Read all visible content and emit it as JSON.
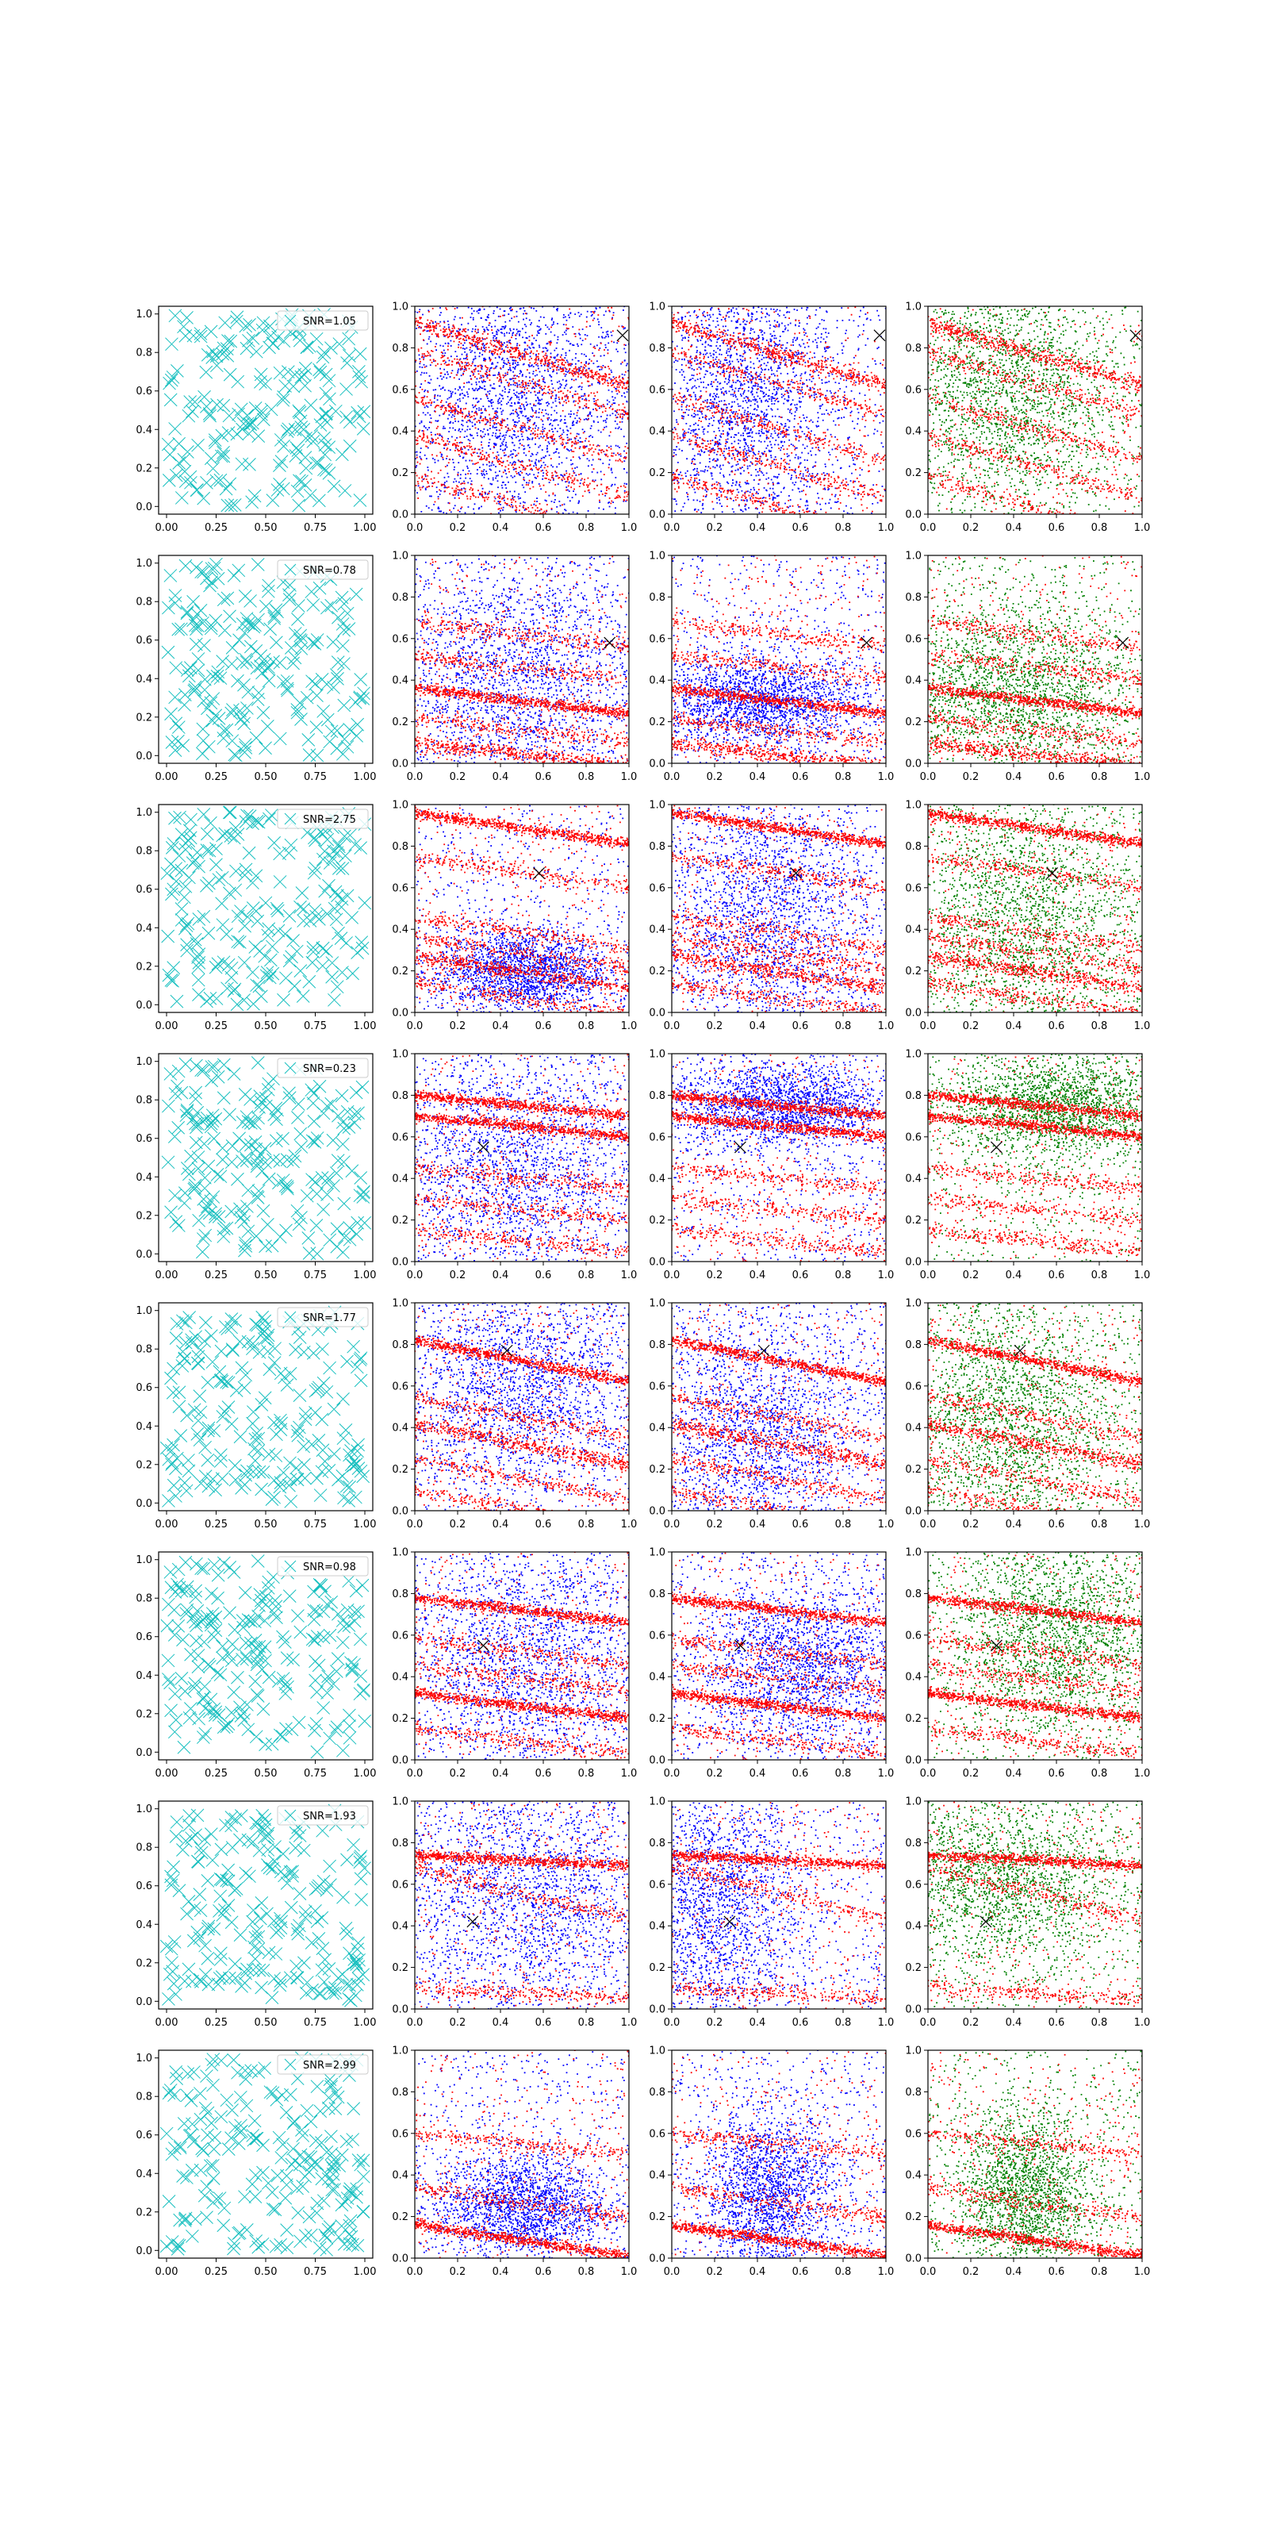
{
  "figure": {
    "rows": 8,
    "cols": 4,
    "scatter_colors": {
      "cyan": "#17bfbf",
      "blue": "#0000ff",
      "red": "#ff0000",
      "green": "#008000",
      "marker": "#000000"
    }
  },
  "chart_data": [
    {
      "type": "scatter",
      "row_index": 0,
      "legend": "SNR=1.05",
      "x_ticks": [
        "0.00",
        "0.25",
        "0.50",
        "0.75",
        "1.00"
      ],
      "y_ticks": [
        "0.0",
        "0.2",
        "0.4",
        "0.6",
        "0.8",
        "1.0"
      ],
      "band_x_ticks": [
        "0.0",
        "0.2",
        "0.4",
        "0.6",
        "0.8",
        "1.0"
      ],
      "band_y_ticks": [
        "0.0",
        "0.2",
        "0.4",
        "0.6",
        "0.8",
        "1.0"
      ],
      "xlim": [
        -0.04,
        1.04
      ],
      "ylim": [
        -0.04,
        1.04
      ],
      "band_xlim": [
        0,
        1
      ],
      "band_ylim": [
        0,
        1
      ],
      "marker_point": [
        0.97,
        0.86
      ],
      "bands": [
        {
          "y0": 0.92,
          "slope": -0.3,
          "weight": 2
        },
        {
          "y0": 0.78,
          "slope": -0.3,
          "weight": 1
        },
        {
          "y0": 0.56,
          "slope": -0.3,
          "weight": 1
        },
        {
          "y0": 0.38,
          "slope": -0.3,
          "weight": 1
        },
        {
          "y0": 0.18,
          "slope": -0.3,
          "weight": 1
        }
      ],
      "cloud_blue_col2": {
        "x": 0.45,
        "y": 0.55,
        "sx": 0.28,
        "sy": 0.32
      },
      "cloud_blue_col3": {
        "x": 0.35,
        "y": 0.55,
        "sx": 0.22,
        "sy": 0.32
      },
      "cloud_green": {
        "x": 0.35,
        "y": 0.6,
        "sx": 0.25,
        "sy": 0.3
      }
    },
    {
      "type": "scatter",
      "row_index": 1,
      "legend": "SNR=0.78",
      "x_ticks": [
        "0.00",
        "0.25",
        "0.50",
        "0.75",
        "1.00"
      ],
      "y_ticks": [
        "0.0",
        "0.2",
        "0.4",
        "0.6",
        "0.8",
        "1.0"
      ],
      "band_x_ticks": [
        "0.0",
        "0.2",
        "0.4",
        "0.6",
        "0.8",
        "1.0"
      ],
      "band_y_ticks": [
        "0.0",
        "0.2",
        "0.4",
        "0.6",
        "0.8",
        "1.0"
      ],
      "xlim": [
        -0.04,
        1.04
      ],
      "ylim": [
        -0.04,
        1.04
      ],
      "band_xlim": [
        0,
        1
      ],
      "band_ylim": [
        0,
        1
      ],
      "marker_point": [
        0.91,
        0.58
      ],
      "bands": [
        {
          "y0": 0.36,
          "slope": -0.12,
          "weight": 3
        },
        {
          "y0": 0.68,
          "slope": -0.12,
          "weight": 1
        },
        {
          "y0": 0.52,
          "slope": -0.12,
          "weight": 1
        },
        {
          "y0": 0.22,
          "slope": -0.12,
          "weight": 1
        },
        {
          "y0": 0.1,
          "slope": -0.12,
          "weight": 2
        }
      ],
      "cloud_blue_col2": {
        "x": 0.45,
        "y": 0.4,
        "sx": 0.3,
        "sy": 0.3
      },
      "cloud_blue_col3": {
        "x": 0.4,
        "y": 0.3,
        "sx": 0.25,
        "sy": 0.1
      },
      "cloud_green": {
        "x": 0.4,
        "y": 0.35,
        "sx": 0.28,
        "sy": 0.2
      }
    },
    {
      "type": "scatter",
      "row_index": 2,
      "legend": "SNR=2.75",
      "x_ticks": [
        "0.00",
        "0.25",
        "0.50",
        "0.75",
        "1.00"
      ],
      "y_ticks": [
        "0.0",
        "0.2",
        "0.4",
        "0.6",
        "0.8",
        "1.0"
      ],
      "band_x_ticks": [
        "0.0",
        "0.2",
        "0.4",
        "0.6",
        "0.8",
        "1.0"
      ],
      "band_y_ticks": [
        "0.0",
        "0.2",
        "0.4",
        "0.6",
        "0.8",
        "1.0"
      ],
      "xlim": [
        -0.04,
        1.04
      ],
      "ylim": [
        -0.04,
        1.04
      ],
      "band_xlim": [
        0,
        1
      ],
      "band_ylim": [
        0,
        1
      ],
      "marker_point": [
        0.58,
        0.67
      ],
      "bands": [
        {
          "y0": 0.96,
          "slope": -0.15,
          "weight": 3
        },
        {
          "y0": 0.75,
          "slope": -0.15,
          "weight": 1
        },
        {
          "y0": 0.46,
          "slope": -0.15,
          "weight": 1
        },
        {
          "y0": 0.36,
          "slope": -0.15,
          "weight": 1
        },
        {
          "y0": 0.27,
          "slope": -0.15,
          "weight": 2
        },
        {
          "y0": 0.14,
          "slope": -0.15,
          "weight": 1
        }
      ],
      "cloud_blue_col2": {
        "x": 0.5,
        "y": 0.2,
        "sx": 0.2,
        "sy": 0.1
      },
      "cloud_blue_col3": {
        "x": 0.45,
        "y": 0.5,
        "sx": 0.25,
        "sy": 0.3
      },
      "cloud_green": {
        "x": 0.45,
        "y": 0.45,
        "sx": 0.28,
        "sy": 0.3
      }
    },
    {
      "type": "scatter",
      "row_index": 3,
      "legend": "SNR=0.23",
      "x_ticks": [
        "0.00",
        "0.25",
        "0.50",
        "0.75",
        "1.00"
      ],
      "y_ticks": [
        "0.0",
        "0.2",
        "0.4",
        "0.6",
        "0.8",
        "1.0"
      ],
      "band_x_ticks": [
        "0.0",
        "0.2",
        "0.4",
        "0.6",
        "0.8",
        "1.0"
      ],
      "band_y_ticks": [
        "0.0",
        "0.2",
        "0.4",
        "0.6",
        "0.8",
        "1.0"
      ],
      "xlim": [
        -0.04,
        1.04
      ],
      "ylim": [
        -0.04,
        1.04
      ],
      "band_xlim": [
        0,
        1
      ],
      "band_ylim": [
        0,
        1
      ],
      "marker_point": [
        0.32,
        0.55
      ],
      "bands": [
        {
          "y0": 0.8,
          "slope": -0.1,
          "weight": 3
        },
        {
          "y0": 0.7,
          "slope": -0.1,
          "weight": 3
        },
        {
          "y0": 0.45,
          "slope": -0.1,
          "weight": 1
        },
        {
          "y0": 0.3,
          "slope": -0.1,
          "weight": 1
        },
        {
          "y0": 0.15,
          "slope": -0.1,
          "weight": 1
        }
      ],
      "cloud_blue_col2": {
        "x": 0.45,
        "y": 0.45,
        "sx": 0.3,
        "sy": 0.3
      },
      "cloud_blue_col3": {
        "x": 0.5,
        "y": 0.75,
        "sx": 0.25,
        "sy": 0.1
      },
      "cloud_green": {
        "x": 0.6,
        "y": 0.75,
        "sx": 0.25,
        "sy": 0.12
      }
    },
    {
      "type": "scatter",
      "row_index": 4,
      "legend": "SNR=1.77",
      "x_ticks": [
        "0.00",
        "0.25",
        "0.50",
        "0.75",
        "1.00"
      ],
      "y_ticks": [
        "0.0",
        "0.2",
        "0.4",
        "0.6",
        "0.8",
        "1.0"
      ],
      "band_x_ticks": [
        "0.0",
        "0.2",
        "0.4",
        "0.6",
        "0.8",
        "1.0"
      ],
      "band_y_ticks": [
        "0.0",
        "0.2",
        "0.4",
        "0.6",
        "0.8",
        "1.0"
      ],
      "xlim": [
        -0.04,
        1.04
      ],
      "ylim": [
        -0.04,
        1.04
      ],
      "band_xlim": [
        0,
        1
      ],
      "band_ylim": [
        0,
        1
      ],
      "marker_point": [
        0.43,
        0.77
      ],
      "bands": [
        {
          "y0": 0.82,
          "slope": -0.2,
          "weight": 3
        },
        {
          "y0": 0.55,
          "slope": -0.2,
          "weight": 1
        },
        {
          "y0": 0.42,
          "slope": -0.2,
          "weight": 2
        },
        {
          "y0": 0.25,
          "slope": -0.2,
          "weight": 1
        },
        {
          "y0": 0.1,
          "slope": -0.2,
          "weight": 1
        }
      ],
      "cloud_blue_col2": {
        "x": 0.5,
        "y": 0.6,
        "sx": 0.3,
        "sy": 0.25
      },
      "cloud_blue_col3": {
        "x": 0.4,
        "y": 0.35,
        "sx": 0.25,
        "sy": 0.3
      },
      "cloud_green": {
        "x": 0.35,
        "y": 0.45,
        "sx": 0.25,
        "sy": 0.3
      }
    },
    {
      "type": "scatter",
      "row_index": 5,
      "legend": "SNR=0.98",
      "x_ticks": [
        "0.00",
        "0.25",
        "0.50",
        "0.75",
        "1.00"
      ],
      "y_ticks": [
        "0.0",
        "0.2",
        "0.4",
        "0.6",
        "0.8",
        "1.0"
      ],
      "band_x_ticks": [
        "0.0",
        "0.2",
        "0.4",
        "0.6",
        "0.8",
        "1.0"
      ],
      "band_y_ticks": [
        "0.0",
        "0.2",
        "0.4",
        "0.6",
        "0.8",
        "1.0"
      ],
      "xlim": [
        -0.04,
        1.04
      ],
      "ylim": [
        -0.04,
        1.04
      ],
      "band_xlim": [
        0,
        1
      ],
      "band_ylim": [
        0,
        1
      ],
      "marker_point": [
        0.32,
        0.55
      ],
      "bands": [
        {
          "y0": 0.78,
          "slope": -0.12,
          "weight": 3
        },
        {
          "y0": 0.58,
          "slope": -0.12,
          "weight": 1
        },
        {
          "y0": 0.45,
          "slope": -0.12,
          "weight": 1
        },
        {
          "y0": 0.32,
          "slope": -0.12,
          "weight": 3
        },
        {
          "y0": 0.15,
          "slope": -0.12,
          "weight": 1
        }
      ],
      "cloud_blue_col2": {
        "x": 0.5,
        "y": 0.5,
        "sx": 0.3,
        "sy": 0.3
      },
      "cloud_blue_col3": {
        "x": 0.6,
        "y": 0.45,
        "sx": 0.25,
        "sy": 0.2
      },
      "cloud_green": {
        "x": 0.6,
        "y": 0.6,
        "sx": 0.25,
        "sy": 0.25
      }
    },
    {
      "type": "scatter",
      "row_index": 6,
      "legend": "SNR=1.93",
      "x_ticks": [
        "0.00",
        "0.25",
        "0.50",
        "0.75",
        "1.00"
      ],
      "y_ticks": [
        "0.0",
        "0.2",
        "0.4",
        "0.6",
        "0.8",
        "1.0"
      ],
      "band_x_ticks": [
        "0.0",
        "0.2",
        "0.4",
        "0.6",
        "0.8",
        "1.0"
      ],
      "band_y_ticks": [
        "0.0",
        "0.2",
        "0.4",
        "0.6",
        "0.8",
        "1.0"
      ],
      "xlim": [
        -0.04,
        1.04
      ],
      "ylim": [
        -0.04,
        1.04
      ],
      "band_xlim": [
        0,
        1
      ],
      "band_ylim": [
        0,
        1
      ],
      "marker_point": [
        0.27,
        0.42
      ],
      "bands": [
        {
          "y0": 0.74,
          "slope": -0.05,
          "weight": 3
        },
        {
          "y0": 0.68,
          "slope": -0.25,
          "weight": 1
        },
        {
          "y0": 0.1,
          "slope": -0.05,
          "weight": 1
        }
      ],
      "cloud_blue_col2": {
        "x": 0.5,
        "y": 0.55,
        "sx": 0.3,
        "sy": 0.3
      },
      "cloud_blue_col3": {
        "x": 0.2,
        "y": 0.5,
        "sx": 0.2,
        "sy": 0.3
      },
      "cloud_green": {
        "x": 0.3,
        "y": 0.6,
        "sx": 0.3,
        "sy": 0.2
      }
    },
    {
      "type": "scatter",
      "row_index": 7,
      "legend": "SNR=2.99",
      "x_ticks": [
        "0.00",
        "0.25",
        "0.50",
        "0.75",
        "1.00"
      ],
      "y_ticks": [
        "0.0",
        "0.2",
        "0.4",
        "0.6",
        "0.8",
        "1.0"
      ],
      "band_x_ticks": [
        "0.0",
        "0.2",
        "0.4",
        "0.6",
        "0.8",
        "1.0"
      ],
      "band_y_ticks": [
        "0.0",
        "0.2",
        "0.4",
        "0.6",
        "0.8",
        "1.0"
      ],
      "xlim": [
        -0.04,
        1.04
      ],
      "ylim": [
        -0.04,
        1.04
      ],
      "band_xlim": [
        0,
        1
      ],
      "band_ylim": [
        0,
        1
      ],
      "marker_point": null,
      "bands": [
        {
          "y0": 0.16,
          "slope": -0.15,
          "weight": 3
        },
        {
          "y0": 0.34,
          "slope": -0.15,
          "weight": 1
        },
        {
          "y0": 0.6,
          "slope": -0.1,
          "weight": 1
        }
      ],
      "cloud_blue_col2": {
        "x": 0.5,
        "y": 0.25,
        "sx": 0.2,
        "sy": 0.12
      },
      "cloud_blue_col3": {
        "x": 0.45,
        "y": 0.3,
        "sx": 0.15,
        "sy": 0.2
      },
      "cloud_green": {
        "x": 0.45,
        "y": 0.3,
        "sx": 0.15,
        "sy": 0.2
      }
    }
  ]
}
